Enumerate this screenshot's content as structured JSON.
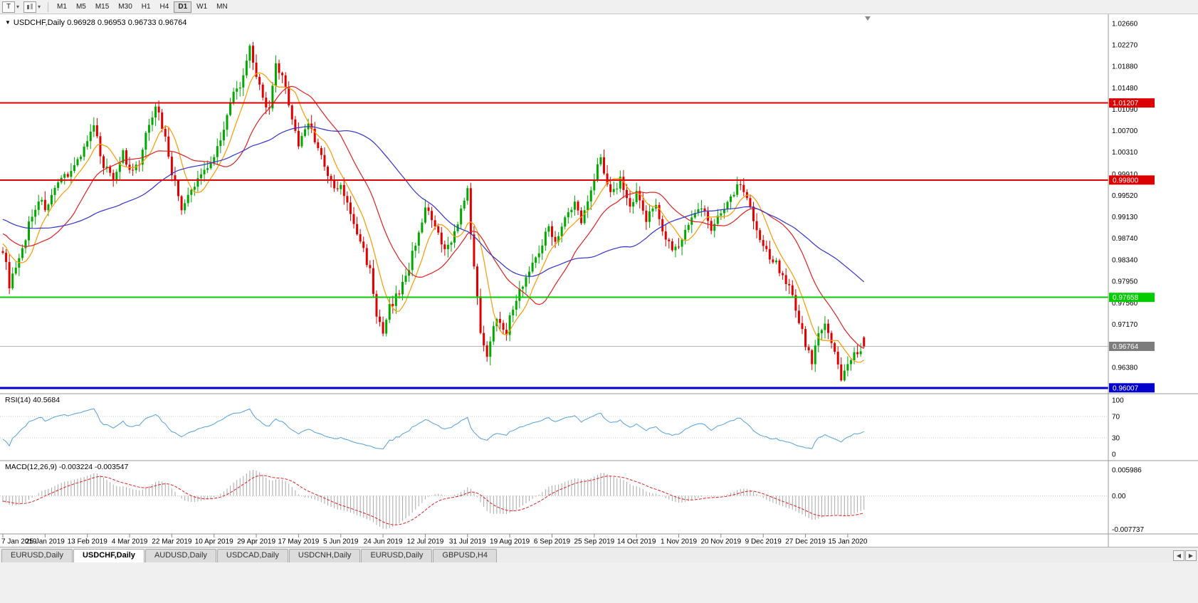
{
  "toolbar": {
    "tool_button_label": "T",
    "timeframes": [
      "M1",
      "M5",
      "M15",
      "M30",
      "H1",
      "H4",
      "D1",
      "W1",
      "MN"
    ],
    "active_timeframe": "D1"
  },
  "chart": {
    "title_line": "USDCHF,Daily 0.96928 0.96953 0.96733 0.96764"
  },
  "chart_data": {
    "type": "candlestick",
    "symbol": "USDCHF",
    "period": "Daily",
    "last_ohlc": {
      "open": "0.96928",
      "high": "0.96953",
      "low": "0.96733",
      "close": "0.96764"
    },
    "price_min": 0.959,
    "price_max": 1.028,
    "num_candles": 266,
    "candle_up": "#00a800",
    "candle_down": "#e00000",
    "close_keypoints": [
      [
        -60,
        0.996
      ],
      [
        -25,
        0.9915
      ],
      [
        -8,
        0.988
      ],
      [
        0,
        0.9855
      ],
      [
        2,
        0.979
      ],
      [
        5,
        0.983
      ],
      [
        8,
        0.99
      ],
      [
        11,
        0.9945
      ],
      [
        13,
        0.993
      ],
      [
        16,
        0.9958
      ],
      [
        19,
        0.9988
      ],
      [
        22,
        1.0005
      ],
      [
        26,
        1.0052
      ],
      [
        28,
        1.0075
      ],
      [
        31,
        1.0008
      ],
      [
        34,
        0.9985
      ],
      [
        37,
        1.003
      ],
      [
        39,
        0.9992
      ],
      [
        42,
        1.0008
      ],
      [
        45,
        1.0085
      ],
      [
        47,
        1.0118
      ],
      [
        50,
        1.0058
      ],
      [
        52,
        0.9995
      ],
      [
        55,
        0.9928
      ],
      [
        58,
        0.9958
      ],
      [
        61,
        0.9992
      ],
      [
        65,
        1.0022
      ],
      [
        68,
        1.0078
      ],
      [
        71,
        1.0135
      ],
      [
        74,
        1.0165
      ],
      [
        76,
        1.0218
      ],
      [
        79,
        1.0148
      ],
      [
        82,
        1.0105
      ],
      [
        84,
        1.0188
      ],
      [
        86,
        1.0165
      ],
      [
        88,
        1.0122
      ],
      [
        91,
        1.0042
      ],
      [
        94,
        1.0088
      ],
      [
        97,
        1.0038
      ],
      [
        100,
        0.9985
      ],
      [
        103,
        0.9958
      ],
      [
        104,
        0.9972
      ],
      [
        107,
        0.9915
      ],
      [
        110,
        0.9868
      ],
      [
        113,
        0.9815
      ],
      [
        115,
        0.9735
      ],
      [
        117,
        0.9695
      ],
      [
        119,
        0.9748
      ],
      [
        122,
        0.9775
      ],
      [
        125,
        0.9822
      ],
      [
        128,
        0.9888
      ],
      [
        130,
        0.9928
      ],
      [
        133,
        0.9892
      ],
      [
        136,
        0.9848
      ],
      [
        139,
        0.9885
      ],
      [
        141,
        0.9922
      ],
      [
        143,
        0.9958
      ],
      [
        145,
        0.9818
      ],
      [
        147,
        0.9705
      ],
      [
        149,
        0.9662
      ],
      [
        152,
        0.9732
      ],
      [
        155,
        0.9705
      ],
      [
        157,
        0.9748
      ],
      [
        160,
        0.9792
      ],
      [
        163,
        0.9825
      ],
      [
        166,
        0.9868
      ],
      [
        168,
        0.9892
      ],
      [
        170,
        0.9872
      ],
      [
        173,
        0.9908
      ],
      [
        176,
        0.9938
      ],
      [
        178,
        0.9902
      ],
      [
        180,
        0.9948
      ],
      [
        182,
        0.9988
      ],
      [
        184,
        1.0022
      ],
      [
        187,
        0.9952
      ],
      [
        190,
        0.9982
      ],
      [
        193,
        0.9932
      ],
      [
        195,
        0.9958
      ],
      [
        198,
        0.9905
      ],
      [
        201,
        0.9938
      ],
      [
        204,
        0.9872
      ],
      [
        207,
        0.9852
      ],
      [
        209,
        0.9872
      ],
      [
        212,
        0.9905
      ],
      [
        215,
        0.9932
      ],
      [
        218,
        0.9895
      ],
      [
        221,
        0.9918
      ],
      [
        224,
        0.9952
      ],
      [
        227,
        0.9978
      ],
      [
        230,
        0.9932
      ],
      [
        233,
        0.9872
      ],
      [
        235,
        0.9848
      ],
      [
        238,
        0.9828
      ],
      [
        241,
        0.9798
      ],
      [
        243,
        0.9768
      ],
      [
        245,
        0.9722
      ],
      [
        247,
        0.9682
      ],
      [
        249,
        0.9648
      ],
      [
        251,
        0.9698
      ],
      [
        253,
        0.9722
      ],
      [
        255,
        0.9682
      ],
      [
        257,
        0.9642
      ],
      [
        258,
        0.9615
      ],
      [
        260,
        0.9642
      ],
      [
        262,
        0.9658
      ],
      [
        265,
        0.9676
      ]
    ],
    "moving_averages": [
      {
        "period": 8,
        "color": "#ff9900"
      },
      {
        "period": 21,
        "color": "#e02020"
      },
      {
        "period": 50,
        "color": "#3333cc"
      }
    ],
    "price_axis": [
      "1.02660",
      "1.02270",
      "1.01880",
      "1.01480",
      "1.01090",
      "1.00700",
      "1.00310",
      "0.99910",
      "0.99520",
      "0.99130",
      "0.98740",
      "0.98340",
      "0.97950",
      "0.97560",
      "0.97170",
      "0.96380"
    ],
    "hlines": [
      {
        "price": 1.01207,
        "label": "1.01207",
        "color": "#dd0000",
        "width": 2
      },
      {
        "price": 0.998,
        "label": "0.99800",
        "color": "#dd0000",
        "width": 2
      },
      {
        "price": 0.97658,
        "label": "0.97658",
        "color": "#00cc00",
        "width": 2
      },
      {
        "price": 0.96007,
        "label": "0.96007",
        "color": "#0000cc",
        "width": 3
      }
    ],
    "current_price": {
      "value": 0.96764,
      "label": "0.96764",
      "line_color": "#b8b8b8",
      "box_color": "#7d7d7d"
    },
    "rsi": {
      "label": "RSI(14) 40.5684",
      "period": 14,
      "color": "#55a0dc",
      "levels": [
        "100",
        "70",
        "30",
        "0"
      ],
      "level_lines": [
        70,
        30
      ]
    },
    "macd": {
      "label": "MACD(12,26,9) -0.003224 -0.003547",
      "fast": 12,
      "slow": 26,
      "signal": 9,
      "hist_color": "#a8a8a8",
      "signal_color": "#e02020",
      "levels": [
        "0.005986",
        "0.00",
        "-0.007737"
      ],
      "max": 0.007,
      "min": -0.0085,
      "pos_peak": 0.006,
      "neg_peak": -0.0077
    },
    "date_axis": [
      "7 Jan 2019",
      "25 Jan 2019",
      "13 Feb 2019",
      "4 Mar 2019",
      "22 Mar 2019",
      "10 Apr 2019",
      "29 Apr 2019",
      "17 May 2019",
      "5 Jun 2019",
      "24 Jun 2019",
      "12 Jul 2019",
      "31 Jul 2019",
      "19 Aug 2019",
      "6 Sep 2019",
      "25 Sep 2019",
      "14 Oct 2019",
      "1 Nov 2019",
      "20 Nov 2019",
      "9 Dec 2019",
      "27 Dec 2019",
      "15 Jan 2020"
    ]
  },
  "tabs": {
    "items": [
      {
        "label": "EURUSD,Daily",
        "active": false
      },
      {
        "label": "USDCHF,Daily",
        "active": true
      },
      {
        "label": "AUDUSD,Daily",
        "active": false
      },
      {
        "label": "USDCAD,Daily",
        "active": false
      },
      {
        "label": "USDCNH,Daily",
        "active": false
      },
      {
        "label": "EURUSD,Daily",
        "active": false
      },
      {
        "label": "GBPUSD,H4",
        "active": false
      }
    ],
    "scroll_left": "◀",
    "scroll_right": "▶"
  }
}
